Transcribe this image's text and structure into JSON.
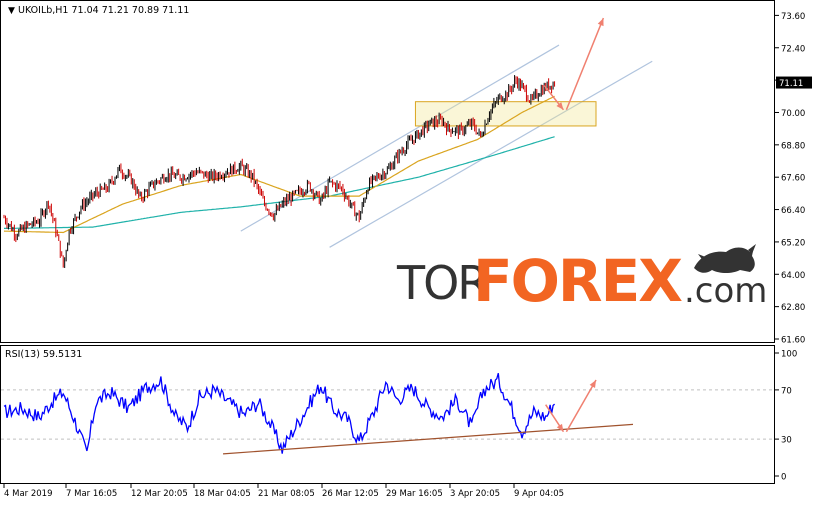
{
  "header": {
    "symbol_line": "UKOILb,H1  71.04 71.21 70.89 71.11",
    "rsi_line": "RSI(13) 59.5131"
  },
  "watermark": {
    "tor": "TOR",
    "forex": "FOREX",
    "dotcom": ".com"
  },
  "colors": {
    "bull_candle": "#000000",
    "bear_candle": "#cc0000",
    "ma_fast": "#daa520",
    "ma_slow": "#20b2aa",
    "channel": "#b0c4de",
    "zone_fill": "#f0e68c",
    "zone_border": "#daa520",
    "arrow": "#f08070",
    "rsi_line": "#0000ff",
    "rsi_trend": "#a0522d",
    "watermark_forex": "#f26522",
    "watermark_dark": "#333333"
  },
  "chart_data": [
    {
      "type": "candlestick",
      "title": "UKOILb,H1",
      "ohlc_last": {
        "open": 71.04,
        "high": 71.21,
        "low": 70.89,
        "close": 71.11
      },
      "current_price_label": "71.11",
      "ylim": [
        61.6,
        73.8
      ],
      "y_ticks": [
        "73.60",
        "72.40",
        "71.20",
        "70.00",
        "68.80",
        "67.60",
        "66.40",
        "65.20",
        "64.00",
        "62.80",
        "61.60"
      ],
      "x_ticks": [
        "4 Mar 2019",
        "7 Mar 16:05",
        "12 Mar 20:05",
        "18 Mar 04:05",
        "21 Mar 08:05",
        "26 Mar 12:05",
        "29 Mar 16:05",
        "3 Apr 20:05",
        "9 Apr 04:05"
      ],
      "price_anchors": [
        {
          "i": 0,
          "p": 66.1
        },
        {
          "i": 8,
          "p": 65.5
        },
        {
          "i": 16,
          "p": 65.8
        },
        {
          "i": 24,
          "p": 66.0
        },
        {
          "i": 30,
          "p": 66.7
        },
        {
          "i": 36,
          "p": 65.4
        },
        {
          "i": 40,
          "p": 64.3
        },
        {
          "i": 44,
          "p": 65.6
        },
        {
          "i": 52,
          "p": 66.5
        },
        {
          "i": 62,
          "p": 67.0
        },
        {
          "i": 70,
          "p": 67.2
        },
        {
          "i": 78,
          "p": 67.9
        },
        {
          "i": 86,
          "p": 67.5
        },
        {
          "i": 92,
          "p": 66.8
        },
        {
          "i": 100,
          "p": 67.3
        },
        {
          "i": 110,
          "p": 67.7
        },
        {
          "i": 120,
          "p": 67.6
        },
        {
          "i": 130,
          "p": 67.8
        },
        {
          "i": 140,
          "p": 67.6
        },
        {
          "i": 150,
          "p": 67.8
        },
        {
          "i": 160,
          "p": 68.0
        },
        {
          "i": 168,
          "p": 67.6
        },
        {
          "i": 176,
          "p": 66.6
        },
        {
          "i": 182,
          "p": 66.2
        },
        {
          "i": 190,
          "p": 66.7
        },
        {
          "i": 198,
          "p": 67.0
        },
        {
          "i": 206,
          "p": 67.3
        },
        {
          "i": 214,
          "p": 66.7
        },
        {
          "i": 220,
          "p": 67.4
        },
        {
          "i": 228,
          "p": 67.2
        },
        {
          "i": 236,
          "p": 66.4
        },
        {
          "i": 240,
          "p": 66.1
        },
        {
          "i": 246,
          "p": 67.3
        },
        {
          "i": 252,
          "p": 67.6
        },
        {
          "i": 260,
          "p": 67.9
        },
        {
          "i": 266,
          "p": 68.4
        },
        {
          "i": 272,
          "p": 68.8
        },
        {
          "i": 280,
          "p": 69.2
        },
        {
          "i": 288,
          "p": 69.6
        },
        {
          "i": 296,
          "p": 69.7
        },
        {
          "i": 300,
          "p": 69.4
        },
        {
          "i": 308,
          "p": 69.3
        },
        {
          "i": 316,
          "p": 69.6
        },
        {
          "i": 322,
          "p": 69.1
        },
        {
          "i": 328,
          "p": 70.0
        },
        {
          "i": 334,
          "p": 70.5
        },
        {
          "i": 340,
          "p": 70.7
        },
        {
          "i": 346,
          "p": 71.2
        },
        {
          "i": 352,
          "p": 70.8
        },
        {
          "i": 356,
          "p": 70.4
        },
        {
          "i": 362,
          "p": 70.8
        },
        {
          "i": 368,
          "p": 71.0
        },
        {
          "i": 372,
          "p": 71.1
        }
      ],
      "ma_fast_anchors": [
        {
          "i": 0,
          "p": 65.6
        },
        {
          "i": 40,
          "p": 65.55
        },
        {
          "i": 80,
          "p": 66.6
        },
        {
          "i": 120,
          "p": 67.3
        },
        {
          "i": 160,
          "p": 67.7
        },
        {
          "i": 200,
          "p": 66.9
        },
        {
          "i": 240,
          "p": 66.9
        },
        {
          "i": 280,
          "p": 68.2
        },
        {
          "i": 320,
          "p": 69.0
        },
        {
          "i": 350,
          "p": 70.0
        },
        {
          "i": 372,
          "p": 70.6
        }
      ],
      "ma_slow_anchors": [
        {
          "i": 0,
          "p": 65.7
        },
        {
          "i": 60,
          "p": 65.75
        },
        {
          "i": 120,
          "p": 66.3
        },
        {
          "i": 160,
          "p": 66.5
        },
        {
          "i": 220,
          "p": 66.9
        },
        {
          "i": 280,
          "p": 67.6
        },
        {
          "i": 330,
          "p": 68.4
        },
        {
          "i": 372,
          "p": 69.1
        }
      ],
      "channel_lines": [
        {
          "x1": 160,
          "y1": 65.6,
          "x2": 375,
          "y2": 72.5
        },
        {
          "x1": 220,
          "y1": 65.0,
          "x2": 438,
          "y2": 71.9
        }
      ],
      "resistance_zone": {
        "i_start": 278,
        "i_end": 400,
        "top": 70.4,
        "bottom": 69.5
      },
      "arrows": [
        {
          "from_i": 365,
          "from_p": 71.0,
          "to_i": 378,
          "to_p": 70.1
        },
        {
          "from_i": 380,
          "from_p": 70.1,
          "to_i": 405,
          "to_p": 73.5
        }
      ]
    },
    {
      "type": "line",
      "title": "RSI(13) 59.5131",
      "ylim": [
        0,
        100
      ],
      "y_ticks": [
        "100",
        "70",
        "30",
        "0"
      ],
      "levels": [
        70,
        30
      ],
      "rsi_anchors": [
        {
          "i": 0,
          "v": 52
        },
        {
          "i": 12,
          "v": 55
        },
        {
          "i": 24,
          "v": 48
        },
        {
          "i": 32,
          "v": 60
        },
        {
          "i": 40,
          "v": 68
        },
        {
          "i": 48,
          "v": 45
        },
        {
          "i": 56,
          "v": 18
        },
        {
          "i": 62,
          "v": 60
        },
        {
          "i": 72,
          "v": 68
        },
        {
          "i": 84,
          "v": 55
        },
        {
          "i": 96,
          "v": 72
        },
        {
          "i": 106,
          "v": 78
        },
        {
          "i": 116,
          "v": 48
        },
        {
          "i": 124,
          "v": 40
        },
        {
          "i": 132,
          "v": 64
        },
        {
          "i": 142,
          "v": 70
        },
        {
          "i": 152,
          "v": 60
        },
        {
          "i": 162,
          "v": 50
        },
        {
          "i": 172,
          "v": 60
        },
        {
          "i": 180,
          "v": 42
        },
        {
          "i": 188,
          "v": 22
        },
        {
          "i": 196,
          "v": 38
        },
        {
          "i": 206,
          "v": 58
        },
        {
          "i": 214,
          "v": 74
        },
        {
          "i": 222,
          "v": 55
        },
        {
          "i": 232,
          "v": 46
        },
        {
          "i": 240,
          "v": 28
        },
        {
          "i": 250,
          "v": 52
        },
        {
          "i": 258,
          "v": 76
        },
        {
          "i": 266,
          "v": 62
        },
        {
          "i": 276,
          "v": 72
        },
        {
          "i": 286,
          "v": 56
        },
        {
          "i": 296,
          "v": 48
        },
        {
          "i": 306,
          "v": 62
        },
        {
          "i": 316,
          "v": 40
        },
        {
          "i": 324,
          "v": 70
        },
        {
          "i": 334,
          "v": 78
        },
        {
          "i": 342,
          "v": 58
        },
        {
          "i": 350,
          "v": 36
        },
        {
          "i": 358,
          "v": 52
        },
        {
          "i": 366,
          "v": 48
        },
        {
          "i": 372,
          "v": 60
        }
      ],
      "trend_line": {
        "i1": 148,
        "v1": 18,
        "i2": 425,
        "v2": 42
      },
      "arrows": [
        {
          "from_i": 366,
          "from_v": 58,
          "to_i": 378,
          "to_v": 36
        },
        {
          "from_i": 380,
          "from_v": 36,
          "to_i": 400,
          "to_v": 78
        }
      ]
    }
  ]
}
